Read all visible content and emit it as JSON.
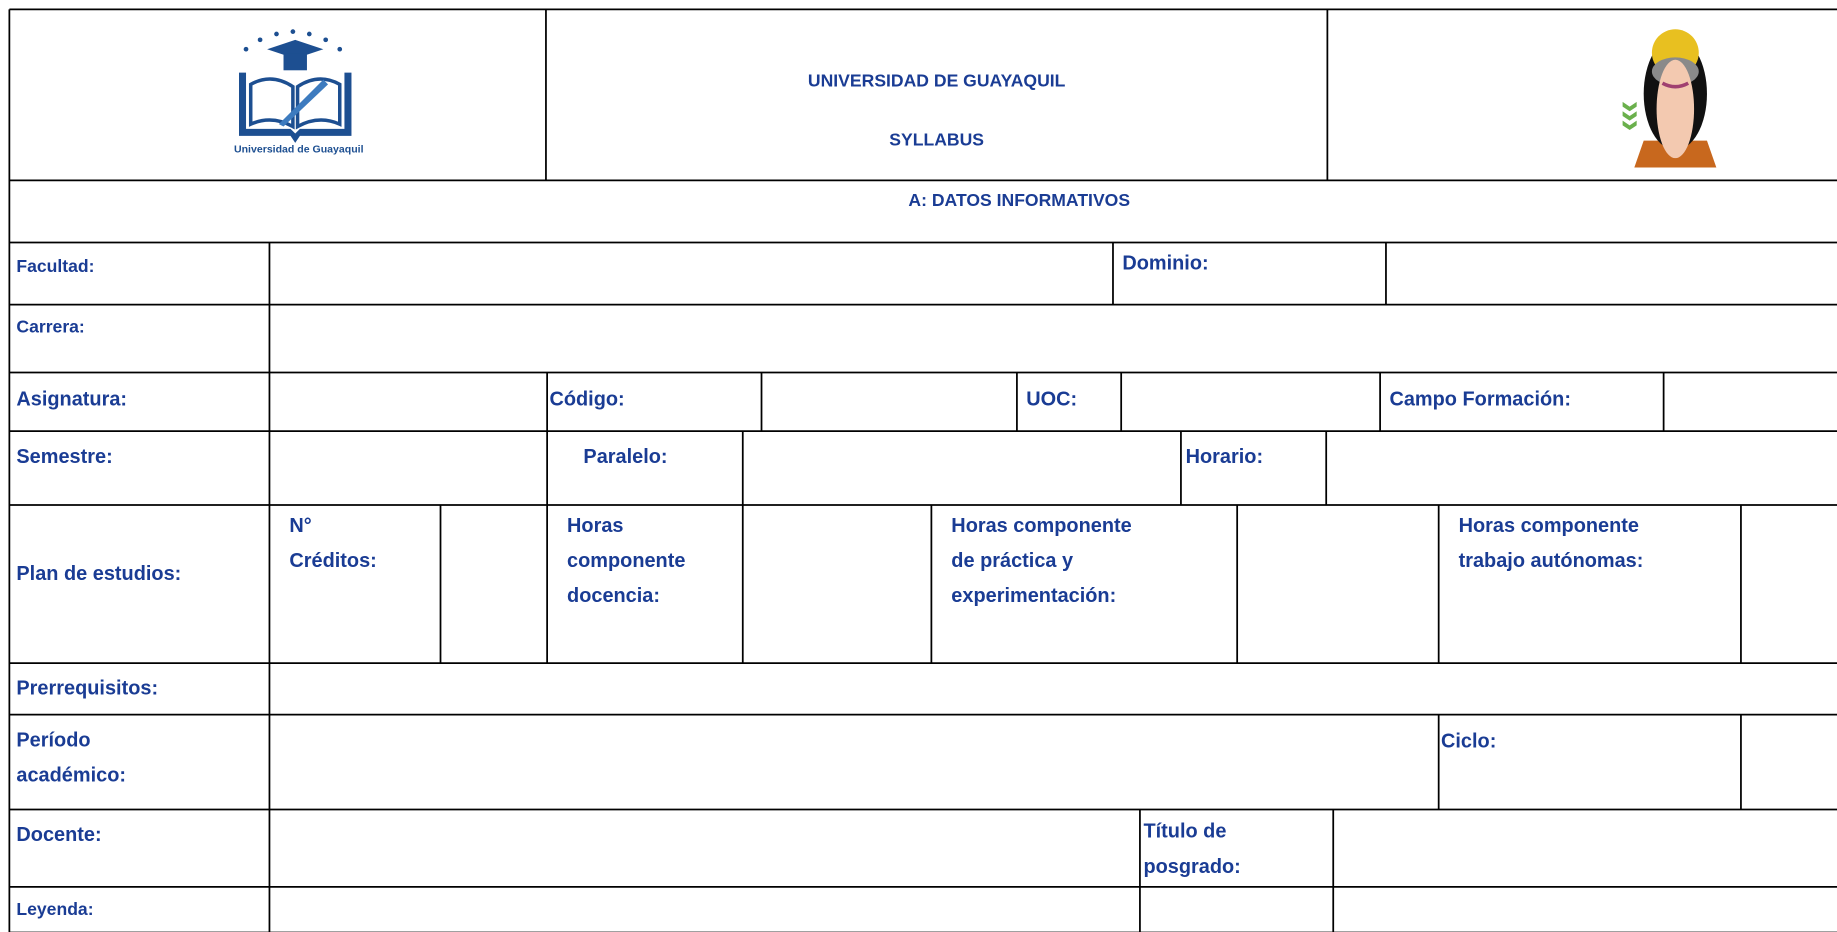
{
  "header": {
    "university": "UNIVERSIDAD DE GUAYAQUIL",
    "document": "SYLLABUS",
    "logo_caption": "Universidad de Guayaquil"
  },
  "section_title": "A: DATOS INFORMATIVOS",
  "fields": [
    "Facultad:",
    "Dominio:",
    "Carrera:",
    "Asignatura:",
    "Código:",
    "UOC:",
    "Campo Formación:",
    "Semestre:",
    "Paralelo:",
    "Horario:",
    "Plan de estudios:",
    "N° Créditos:",
    "Horas componente docencia:",
    "Horas componente de práctica y experimentación:",
    "Horas componente trabajo autónomas:",
    "Prerrequisitos:",
    "Período académico:",
    "Ciclo:",
    "Docente:",
    "Título de posgrado:",
    "Leyenda:"
  ]
}
